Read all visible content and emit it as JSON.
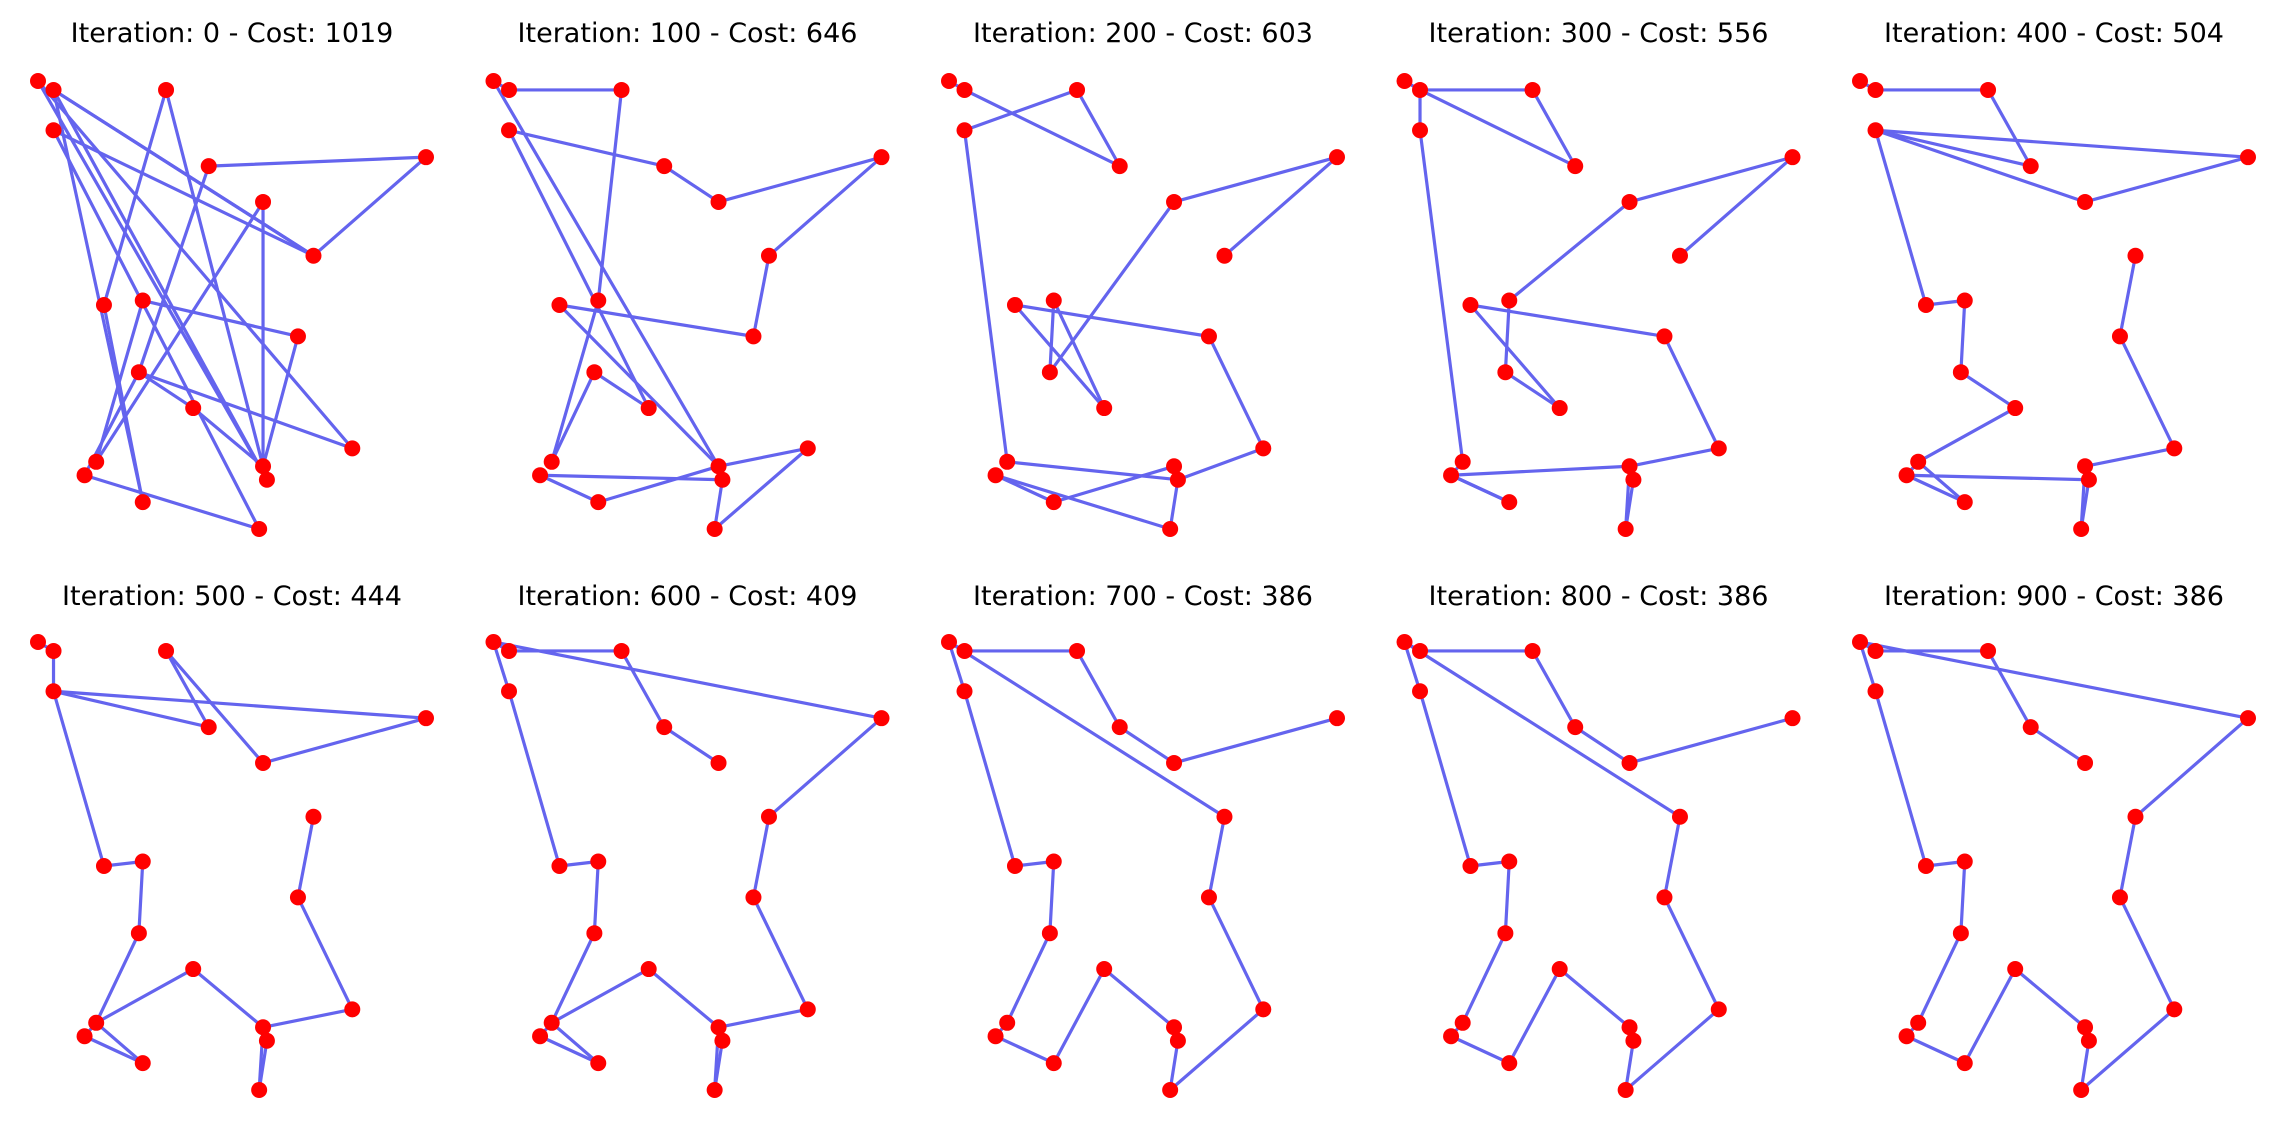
{
  "colors": {
    "point": "#ff0000",
    "edge": "#6464ee",
    "background": "#ffffff"
  },
  "chart_data": {
    "type": "scatter",
    "axes_visible": false,
    "cities": [
      {
        "id": 0,
        "x": 0.0,
        "y": 0.0
      },
      {
        "id": 1,
        "x": 0.04,
        "y": 0.02
      },
      {
        "id": 2,
        "x": 0.33,
        "y": 0.02
      },
      {
        "id": 3,
        "x": 0.04,
        "y": 0.11
      },
      {
        "id": 4,
        "x": 0.44,
        "y": 0.19
      },
      {
        "id": 5,
        "x": 0.58,
        "y": 0.27
      },
      {
        "id": 6,
        "x": 1.0,
        "y": 0.17
      },
      {
        "id": 7,
        "x": 0.71,
        "y": 0.39
      },
      {
        "id": 8,
        "x": 0.17,
        "y": 0.5
      },
      {
        "id": 9,
        "x": 0.27,
        "y": 0.49
      },
      {
        "id": 10,
        "x": 0.67,
        "y": 0.57
      },
      {
        "id": 11,
        "x": 0.26,
        "y": 0.65
      },
      {
        "id": 12,
        "x": 0.4,
        "y": 0.73
      },
      {
        "id": 13,
        "x": 0.81,
        "y": 0.82
      },
      {
        "id": 14,
        "x": 0.15,
        "y": 0.85
      },
      {
        "id": 15,
        "x": 0.12,
        "y": 0.88
      },
      {
        "id": 16,
        "x": 0.58,
        "y": 0.86
      },
      {
        "id": 17,
        "x": 0.59,
        "y": 0.89
      },
      {
        "id": 18,
        "x": 0.27,
        "y": 0.94
      },
      {
        "id": 19,
        "x": 0.57,
        "y": 1.0
      }
    ],
    "panels": [
      {
        "title": "Iteration: 0 - Cost: 1019",
        "iteration": 0,
        "cost": 1019,
        "tour": [
          0,
          17,
          1,
          7,
          3,
          19,
          15,
          11,
          4,
          6,
          7,
          1,
          18,
          8,
          2,
          16,
          5,
          14,
          9,
          10,
          16,
          12,
          11,
          13,
          0
        ]
      },
      {
        "title": "Iteration: 100 - Cost: 646",
        "iteration": 100,
        "cost": 646,
        "tour": [
          0,
          1,
          2,
          9,
          14,
          11,
          12,
          3,
          4,
          5,
          6,
          7,
          10,
          8,
          16,
          18,
          15,
          17,
          19,
          13,
          16,
          0
        ]
      },
      {
        "title": "Iteration: 200 - Cost: 603",
        "iteration": 200,
        "cost": 603,
        "tour": [
          0,
          1,
          4,
          2,
          3,
          14,
          17,
          16,
          18,
          15,
          19,
          17,
          13,
          10,
          8,
          12,
          9,
          11,
          5,
          6,
          7
        ]
      },
      {
        "title": "Iteration: 300 - Cost: 556",
        "iteration": 300,
        "cost": 556,
        "tour": [
          0,
          1,
          2,
          4,
          1,
          3,
          14,
          15,
          18,
          15,
          16,
          17,
          19,
          16,
          13,
          10,
          8,
          12,
          11,
          9,
          5,
          6,
          7
        ]
      },
      {
        "title": "Iteration: 400 - Cost: 504",
        "iteration": 400,
        "cost": 504,
        "tour": [
          0,
          1,
          2,
          4,
          3,
          5,
          6,
          3,
          8,
          9,
          11,
          12,
          14,
          15,
          18,
          14,
          15,
          17,
          19,
          16,
          13,
          10,
          7
        ]
      },
      {
        "title": "Iteration: 500 - Cost: 444",
        "iteration": 500,
        "cost": 444,
        "tour": [
          0,
          1,
          3,
          4,
          2,
          5,
          6,
          3,
          8,
          9,
          11,
          14,
          15,
          18,
          14,
          12,
          16,
          17,
          19,
          16,
          13,
          10,
          7
        ]
      },
      {
        "title": "Iteration: 600 - Cost: 409",
        "iteration": 600,
        "cost": 409,
        "tour": [
          0,
          3,
          8,
          9,
          11,
          14,
          15,
          18,
          14,
          12,
          16,
          17,
          19,
          16,
          13,
          10,
          7,
          6,
          0,
          1,
          2,
          4,
          5
        ]
      },
      {
        "title": "Iteration: 700 - Cost: 386",
        "iteration": 700,
        "cost": 386,
        "tour": [
          0,
          3,
          8,
          9,
          11,
          14,
          15,
          18,
          12,
          16,
          17,
          19,
          13,
          10,
          7,
          0,
          1,
          2,
          4,
          5,
          6
        ]
      },
      {
        "title": "Iteration: 800 - Cost: 386",
        "iteration": 800,
        "cost": 386,
        "tour": [
          0,
          3,
          8,
          9,
          11,
          14,
          15,
          18,
          12,
          16,
          17,
          19,
          13,
          10,
          7,
          0,
          1,
          2,
          4,
          5,
          6
        ]
      },
      {
        "title": "Iteration: 900 - Cost: 386",
        "iteration": 900,
        "cost": 386,
        "tour": [
          0,
          3,
          8,
          9,
          11,
          14,
          15,
          18,
          12,
          16,
          17,
          19,
          13,
          10,
          7,
          6,
          0,
          1,
          2,
          4,
          5
        ]
      }
    ]
  }
}
